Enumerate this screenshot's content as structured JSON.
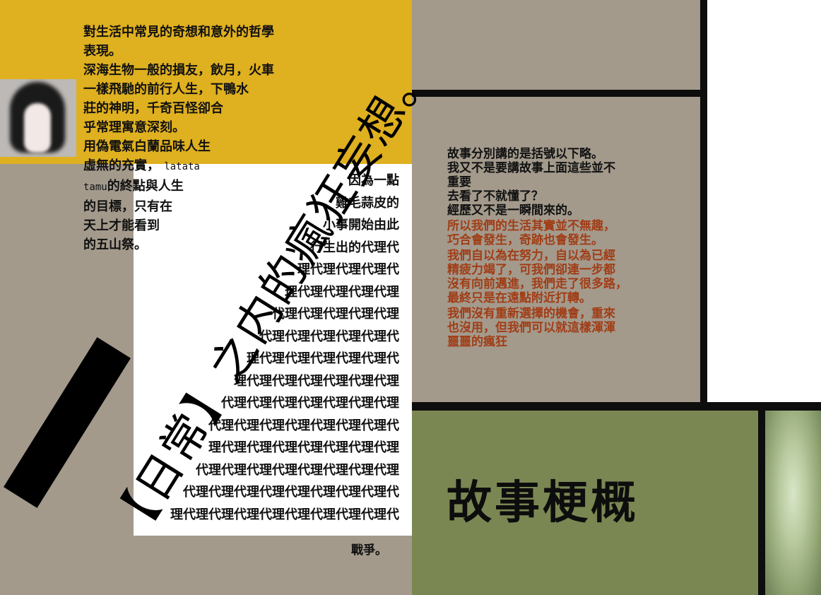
{
  "left_text": [
    "對生活中常見的奇想和意外的哲學",
    "表現。",
    "深海生物一般的損友，飲月，火車",
    "一樣飛馳的前行人生，下鴨水",
    "莊的神明，千奇百怪卻合",
    "乎常理寓意深刻。",
    "用偽電氣白蘭品味人生",
    "虛無的充實，",
    "latata",
    "tamu",
    "的終點與人生",
    "的目標，只有在",
    "天上才能看到",
    "的五山祭。"
  ],
  "pyramid": [
    "因為一點",
    "雞毛蒜皮的",
    "小事開始由此",
    "行生出的代理代",
    "理代理代理代理代",
    "理代理代理代理代理",
    "代理代理代理代理代理",
    "代理代理代理代理代理代",
    "理代理代理代理代理代理代",
    "理代理代理代理代理代理代理",
    "代理代理代理代理代理代理代理",
    "代理代理代理代理代理代理代理代",
    "理代理代理代理代理代理代理代理",
    "代理代理代理代理代理代理代理代理",
    "代理代理代理代理代理代理代理代理代",
    "理代理代理代理代理代理代理代理代理代"
  ],
  "war": "戰爭。",
  "big_title": "【日常】之内的瘋狂妄想。",
  "story_black": [
    "故事分別講的是括號以下略。",
    "我又不是要講故事上面這些並不",
    "重要",
    "去看了不就懂了？",
    "經歷又不是一瞬間來的。"
  ],
  "story_red": [
    "所以我們的生活其實並不無趣，",
    "巧合會發生，奇跡也會發生。",
    "我們自以為在努力，自以為已經",
    "精疲力竭了，可我們卻連一步都",
    "沒有向前邁進，我們走了很多路，",
    "最終只是在遠點附近打轉。",
    "我們沒有重新選擇的機會，重來",
    "也沒用，但我們可以就這樣渾渾",
    "噩噩的瘋狂"
  ],
  "heading": "故事梗概",
  "colors": {
    "yellow": "#dfb01f",
    "gray": "#a39a8c",
    "olive": "#7a8753",
    "red_text": "#a13d16"
  }
}
